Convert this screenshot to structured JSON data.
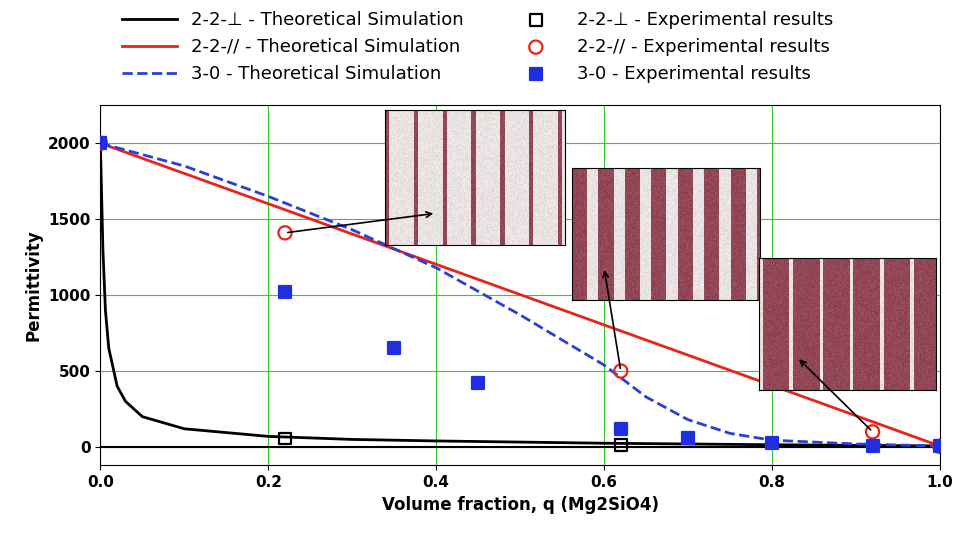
{
  "chart_data": {
    "type": "line",
    "xlabel": "Volume fraction, q (Mg2SiO4)",
    "ylabel": "Permittivity",
    "xlim": [
      0.0,
      1.0
    ],
    "ylim": [
      -120,
      2250
    ],
    "xticks": [
      {
        "value": 0.0,
        "label": "0.0"
      },
      0.2,
      0.4,
      0.6,
      0.8,
      {
        "value": 1.0,
        "label": "1.0"
      }
    ],
    "yticks": [
      0,
      500,
      1000,
      1500,
      2000
    ],
    "grid": true,
    "legend": "upper center",
    "series": [
      {
        "name": "2-2-⊥ - Theoretical Simulation",
        "type": "line",
        "color": "#000000",
        "line_style": "solid",
        "x": [
          0.0,
          0.003,
          0.006,
          0.01,
          0.02,
          0.03,
          0.05,
          0.1,
          0.2,
          0.3,
          0.4,
          0.6,
          0.8,
          1.0
        ],
        "values": [
          2000,
          1300,
          900,
          650,
          400,
          300,
          200,
          120,
          70,
          50,
          40,
          25,
          15,
          7
        ]
      },
      {
        "name": "2-2-// - Theoretical Simulation",
        "type": "line",
        "color": "#e8231a",
        "line_style": "solid",
        "x": [
          0.0,
          1.0
        ],
        "values": [
          2000,
          7
        ]
      },
      {
        "name": "3-0 - Theoretical Simulation",
        "type": "line",
        "color": "#2b3fd8",
        "line_style": "dashed",
        "x": [
          0.0,
          0.1,
          0.2,
          0.3,
          0.4,
          0.5,
          0.6,
          0.65,
          0.7,
          0.75,
          0.8,
          0.9,
          1.0
        ],
        "values": [
          2000,
          1850,
          1650,
          1430,
          1180,
          870,
          540,
          330,
          180,
          90,
          45,
          20,
          7
        ]
      },
      {
        "name": "2-2-⊥ - Experimental results",
        "type": "scatter",
        "color": "#000000",
        "marker": "open_square",
        "x": [
          0.22,
          0.62
        ],
        "values": [
          55,
          15
        ]
      },
      {
        "name": "2-2-// - Experimental results",
        "type": "scatter",
        "color": "#e8231a",
        "marker": "open_circle",
        "x": [
          0.0,
          0.22,
          0.62,
          0.92,
          1.0
        ],
        "values": [
          2000,
          1410,
          500,
          100,
          5
        ]
      },
      {
        "name": "3-0 - Experimental results",
        "type": "scatter",
        "color": "#1f2fe0",
        "marker": "square",
        "x": [
          0.0,
          0.22,
          0.35,
          0.45,
          0.62,
          0.7,
          0.8,
          0.92,
          1.0
        ],
        "values": [
          2000,
          1020,
          650,
          420,
          120,
          60,
          25,
          10,
          5
        ]
      }
    ]
  }
}
